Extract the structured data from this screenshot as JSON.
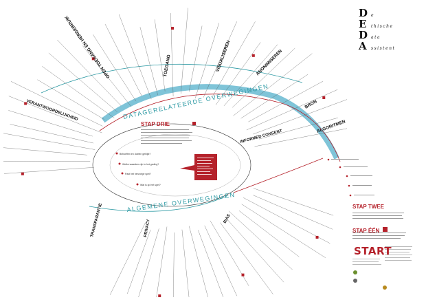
{
  "title": {
    "letters": [
      {
        "initial": "D",
        "rest": "e"
      },
      {
        "initial": "E",
        "rest": "thische"
      },
      {
        "initial": "D",
        "rest": "ata"
      },
      {
        "initial": "A",
        "rest": "ssistent"
      }
    ]
  },
  "arc_labels": {
    "data_related": "DATAGERELATEERDE OVERWEGINGEN",
    "general": "ALGEMENE OVERWEGINGEN"
  },
  "categories": [
    {
      "label": "ALGORITMEN"
    },
    {
      "label": "BRON"
    },
    {
      "label": "ANONIMISEREN"
    },
    {
      "label": "VISUALISEREN"
    },
    {
      "label": "TOEGANG"
    },
    {
      "label": "OPEN TOEGANG EN HERGEBRUIK"
    },
    {
      "label": "INFORMED CONSENT"
    },
    {
      "label": "VERANTWOORDELIJKHEID"
    },
    {
      "label": "TRANSPARANTIE"
    },
    {
      "label": "PRIVACY"
    },
    {
      "label": "BIAS"
    }
  ],
  "steps": {
    "stap_drie": "STAP DRIE",
    "stap_twee": "STAP TWEE",
    "stap_een": "STAP ÉÉN",
    "start": "START"
  },
  "center_questions": [
    "Behoeften en doelen gehijkt?",
    "Welke waarden zijn in het geding?",
    "Past het hervorige spel?",
    "Wat is op het spel?"
  ],
  "colors": {
    "accent_red": "#b5222b",
    "teal": "#2e9aa4",
    "light_blue": "#7fc4d8",
    "text": "#222222"
  }
}
